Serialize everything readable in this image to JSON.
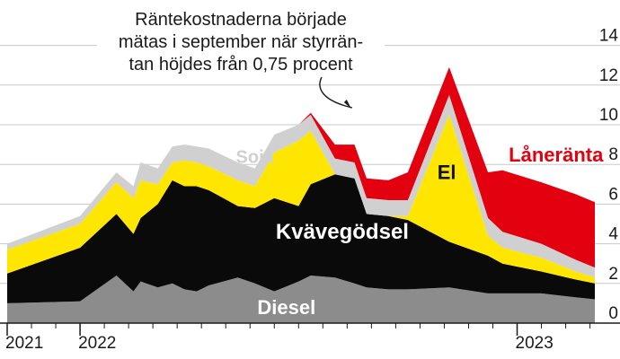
{
  "chart_data": {
    "type": "area",
    "stacked": true,
    "title": "",
    "xlabel": "",
    "ylabel": "",
    "ylim": [
      0,
      14
    ],
    "yticks": [
      0,
      2,
      4,
      6,
      8,
      10,
      12,
      14
    ],
    "grid": true,
    "x_tick_labels": [
      {
        "label": "2021",
        "month": 0
      },
      {
        "label": "2022",
        "month": 3
      },
      {
        "label": "2023",
        "month": 21
      }
    ],
    "months": [
      0,
      3,
      4.5,
      5.2,
      5.5,
      6.2,
      6.8,
      7.3,
      7.8,
      8.3,
      9.5,
      10.2,
      11,
      12,
      12.5,
      13.5,
      14.3,
      14.8,
      15.7,
      16.5,
      18.2,
      19.8,
      20.4,
      22,
      23.4,
      24.2
    ],
    "series": [
      {
        "name": "Diesel",
        "color": "#8c8c8c",
        "label_color": "#ffffff",
        "values": [
          1.0,
          1.1,
          2.4,
          1.6,
          2.1,
          1.8,
          2.0,
          1.7,
          1.6,
          1.9,
          2.3,
          2.0,
          1.6,
          2.1,
          2.4,
          2.3,
          2.0,
          1.8,
          1.7,
          1.7,
          1.8,
          1.5,
          1.5,
          1.5,
          1.3,
          1.2
        ]
      },
      {
        "name": "Kvävegödsel",
        "color": "#0a0a0a",
        "label_color": "#ffffff",
        "values": [
          1.5,
          2.7,
          3.1,
          2.9,
          3.2,
          4.2,
          5.2,
          5.2,
          5.3,
          4.8,
          3.6,
          3.8,
          4.7,
          3.8,
          4.6,
          5.2,
          5.3,
          3.7,
          3.7,
          3.5,
          2.3,
          1.9,
          1.5,
          1.1,
          0.9,
          0.8
        ]
      },
      {
        "name": "El",
        "color": "#ffe600",
        "label_color": "#111111",
        "values": [
          1.2,
          1.2,
          1.6,
          1.8,
          1.9,
          1.0,
          0.9,
          1.3,
          1.2,
          1.2,
          1.3,
          1.1,
          2.3,
          3.3,
          2.7,
          0.0,
          0.0,
          0.0,
          0.0,
          0.2,
          6.4,
          1.0,
          0.8,
          0.7,
          0.4,
          0.3
        ]
      },
      {
        "name": "Soja",
        "color": "#d0d0d0",
        "label_color": "#d0d0d0",
        "values": [
          0.3,
          0.4,
          0.5,
          0.6,
          0.9,
          0.8,
          0.8,
          0.8,
          0.8,
          0.9,
          0.9,
          0.9,
          0.9,
          0.8,
          0.8,
          0.8,
          0.8,
          0.8,
          0.8,
          0.8,
          1.0,
          0.9,
          0.8,
          0.7,
          0.6,
          0.5
        ]
      },
      {
        "name": "Låneränta",
        "color": "#e3000f",
        "label_color": "#e3000f",
        "values": [
          0,
          0,
          0,
          0,
          0,
          0,
          0,
          0,
          0,
          0,
          0,
          0,
          0,
          0,
          0.1,
          0.7,
          0.9,
          1.0,
          1.0,
          1.4,
          1.4,
          2.3,
          3.1,
          3.1,
          3.3,
          3.3
        ]
      }
    ],
    "annotation": {
      "lines": [
        "Räntekostnaderna började",
        "mätas i september när styrrän-",
        "tan höjdes från 0,75 procent"
      ],
      "points_to_month": 14.5
    }
  }
}
